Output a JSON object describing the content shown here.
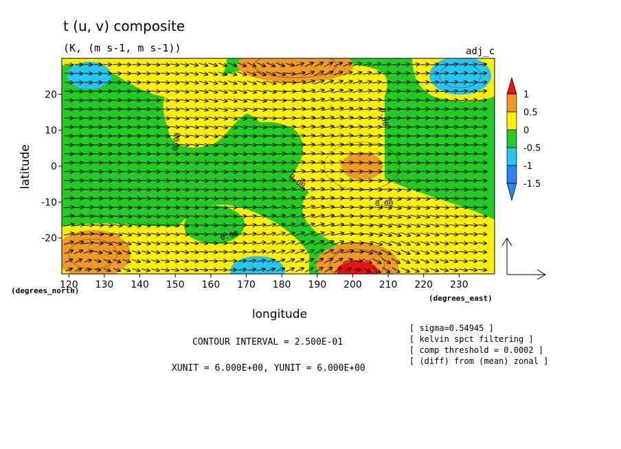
{
  "chart_data": {
    "type": "heatmap",
    "title": "t (u, v) composite",
    "subtitle": "(K, (m s-1, m s-1))",
    "tag": "adj_c",
    "xlabel": "longitude",
    "ylabel": "latitude",
    "x_unit_label": "(degrees_east)",
    "y_unit_label": "(degrees_north)",
    "xlim": [
      118,
      240
    ],
    "ylim": [
      -30,
      30
    ],
    "x_ticks": [
      "120",
      "130",
      "140",
      "150",
      "160",
      "170",
      "180",
      "190",
      "200",
      "210",
      "220",
      "230"
    ],
    "y_ticks": [
      "20",
      "10",
      "0",
      "-10",
      "-20"
    ],
    "color_levels": [
      "1",
      "0.5",
      "0",
      "-0.5",
      "-1",
      "-1.5"
    ],
    "colors": {
      "red": "#ee1111",
      "orange": "#ef9a22",
      "yellow": "#ffef00",
      "green": "#22cc22",
      "cyan": "#22c8f0",
      "blue": "#2a86ee"
    },
    "contour_labels": [
      "0.00",
      "0.00",
      "0.00",
      "0.00",
      "0.00"
    ],
    "footer": {
      "contour_interval": "CONTOUR INTERVAL = 2.500E-01",
      "units": "XUNIT = 6.000E+00, YUNIT = 6.000E+00"
    },
    "notes": [
      "[ sigma=0.54945 ]",
      "[ kelvin spct filtering ]",
      "[ comp threshold = 0.0002 ]",
      "[ (diff) from (mean) zonal ]"
    ]
  }
}
